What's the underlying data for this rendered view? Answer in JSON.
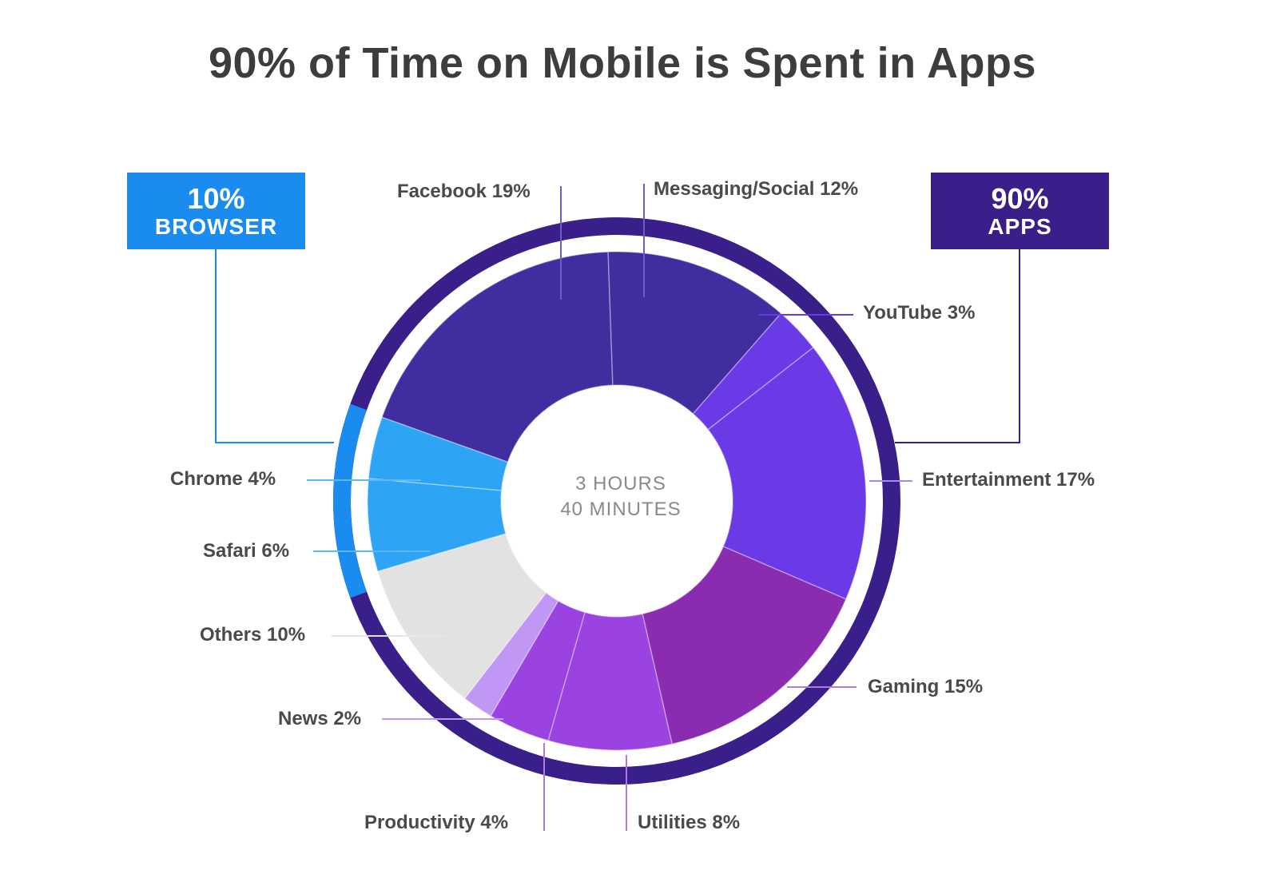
{
  "title": "90% of Time on Mobile is Spent in Apps",
  "browser_box": {
    "pct": "10%",
    "label": "BROWSER",
    "color": "#1a8cf0"
  },
  "apps_box": {
    "pct": "90%",
    "label": "APPS",
    "color": "#3a1f8a"
  },
  "center": {
    "line1": "3 HOURS",
    "line2": "40 MINUTES"
  },
  "labels": {
    "facebook": "Facebook 19%",
    "messaging": "Messaging/Social 12%",
    "youtube": "YouTube 3%",
    "entertainment": "Entertainment 17%",
    "gaming": "Gaming 15%",
    "utilities": "Utilities 8%",
    "productivity": "Productivity 4%",
    "news": "News 2%",
    "others": "Others 10%",
    "safari": "Safari 6%",
    "chrome": "Chrome 4%"
  },
  "chart_data": {
    "type": "pie",
    "title": "90% of Time on Mobile is Spent in Apps",
    "subtitle": "3 HOURS 40 MINUTES",
    "categories": [
      "Facebook",
      "Messaging/Social",
      "YouTube",
      "Entertainment",
      "Gaming",
      "Utilities",
      "Productivity",
      "News",
      "Others",
      "Safari",
      "Chrome"
    ],
    "values": [
      19,
      12,
      3,
      17,
      15,
      8,
      4,
      2,
      10,
      6,
      4
    ],
    "colors": [
      "#402ea0",
      "#402ea0",
      "#6a3ae6",
      "#6a3ae6",
      "#8a2bb0",
      "#9b43e0",
      "#9b43e0",
      "#c197f5",
      "#e2e2e2",
      "#2ea4f5",
      "#2ea4f5"
    ],
    "groups": [
      {
        "name": "APPS",
        "value": 90,
        "color": "#3a1f8a"
      },
      {
        "name": "BROWSER",
        "value": 10,
        "color": "#1a8cf0"
      }
    ],
    "donut": true,
    "legend": "callout labels"
  }
}
